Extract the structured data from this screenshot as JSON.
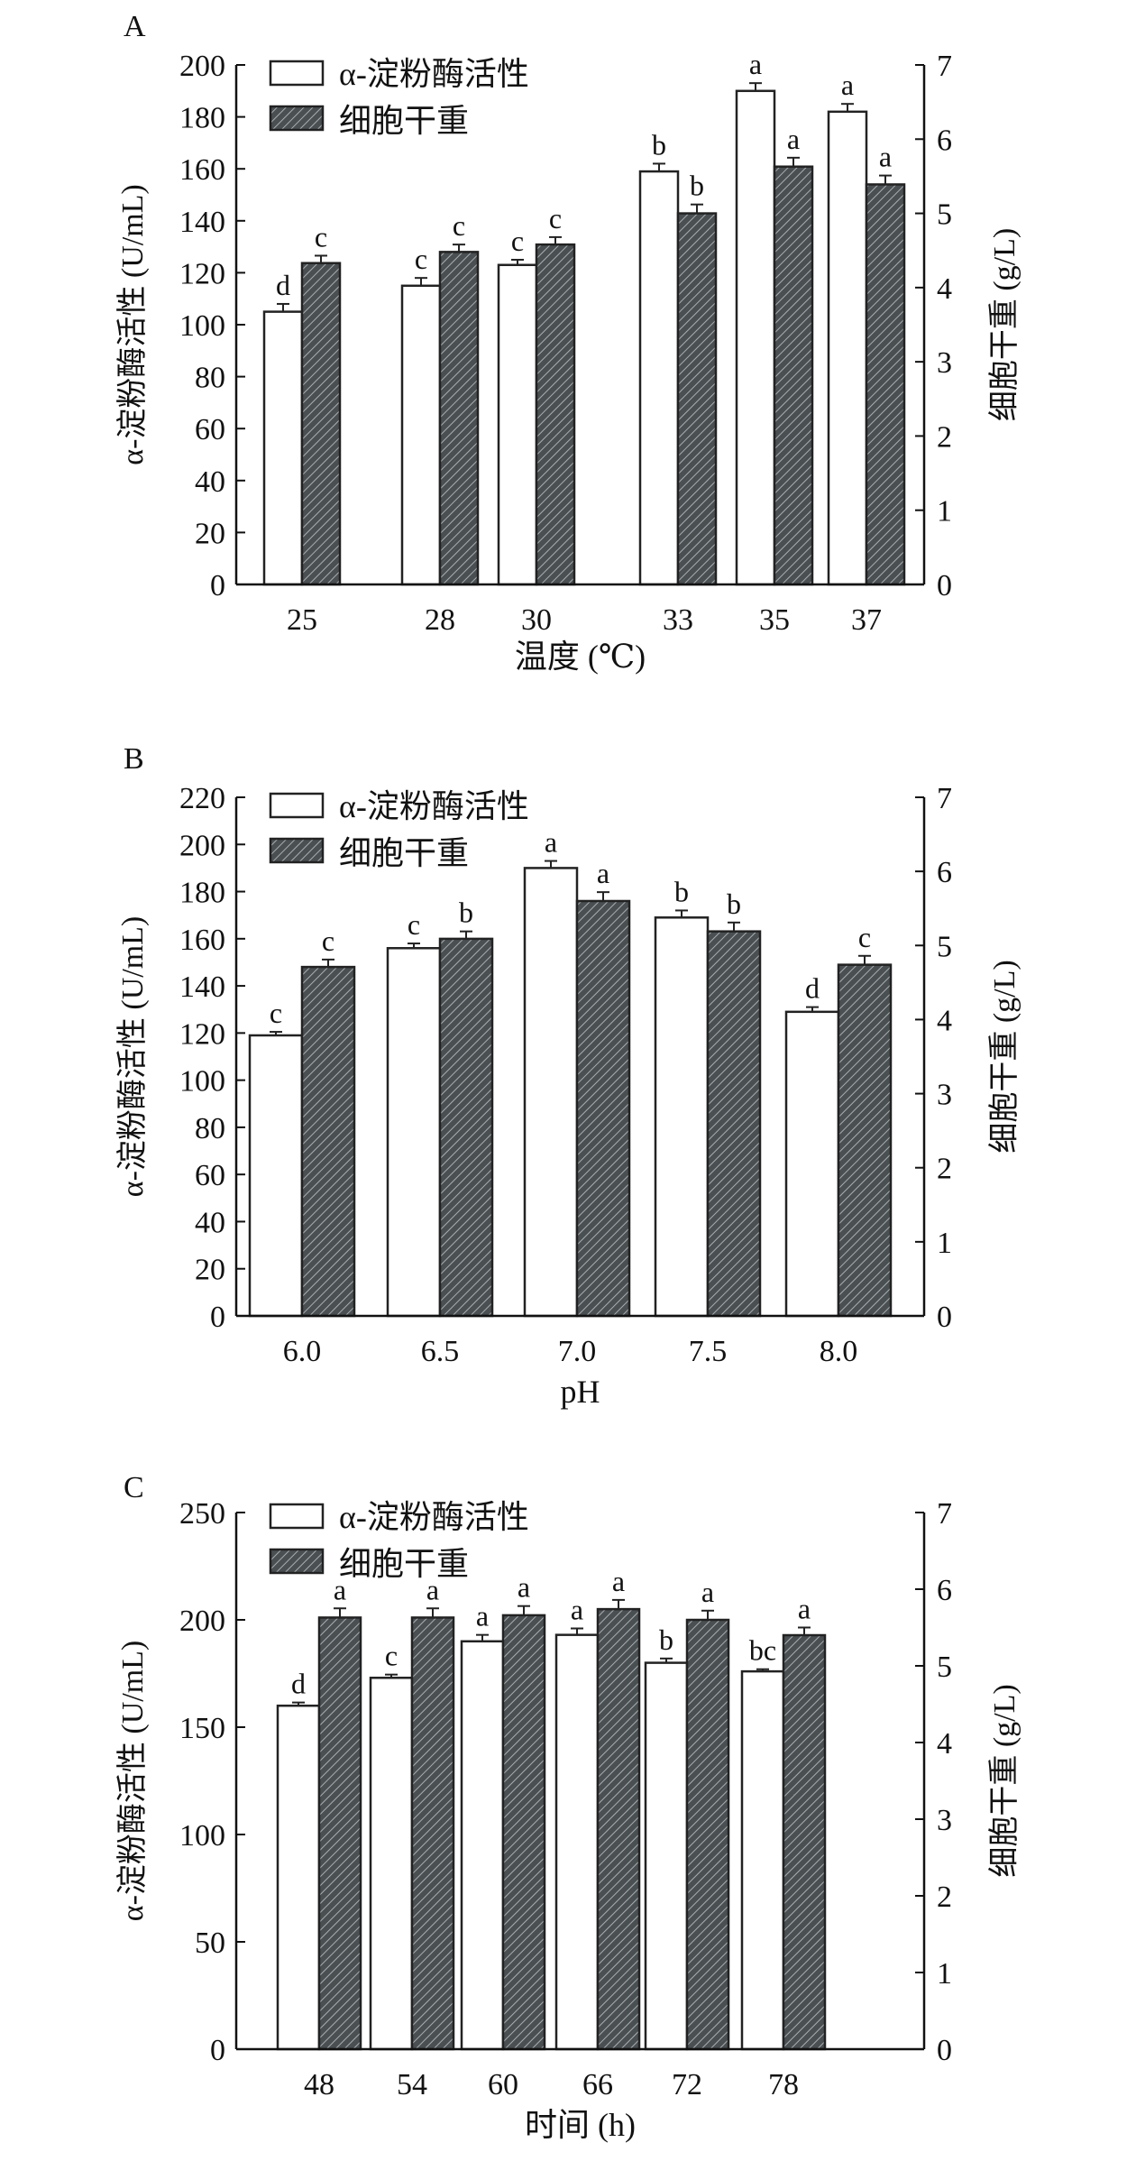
{
  "legend": {
    "enzyme": "α-淀粉酶活性",
    "dcw": "细胞干重"
  },
  "colors": {
    "enzyme_fill": "#ffffff",
    "dcw_fill": "#4a4f52",
    "axis": "#111111"
  },
  "chart_data": [
    {
      "panel_label": "A",
      "type": "bar",
      "xlabel": "温度 (℃)",
      "ylabel": "α-淀粉酶活性 (U/mL)",
      "y2label": "细胞干重 (g/L)",
      "categories": [
        "25",
        "28",
        "30",
        "33",
        "35",
        "37"
      ],
      "ylim": [
        0,
        200
      ],
      "yticks": [
        0,
        20,
        40,
        60,
        80,
        100,
        120,
        140,
        160,
        180,
        200
      ],
      "y2lim": [
        0,
        7
      ],
      "y2ticks": [
        0,
        1,
        2,
        3,
        4,
        5,
        6,
        7
      ],
      "series": [
        {
          "name": "α-淀粉酶活性",
          "axis": "left",
          "values": [
            105,
            115,
            123,
            159,
            190,
            182
          ],
          "errors": [
            3,
            3,
            2,
            3,
            3,
            3
          ],
          "letters": [
            "d",
            "c",
            "c",
            "b",
            "a",
            "a"
          ]
        },
        {
          "name": "细胞干重",
          "axis": "right",
          "values": [
            4.33,
            4.48,
            4.58,
            5.0,
            5.63,
            5.39
          ],
          "errors": [
            0.1,
            0.1,
            0.1,
            0.12,
            0.12,
            0.12
          ],
          "letters": [
            "c",
            "c",
            "c",
            "b",
            "a",
            "a"
          ]
        }
      ]
    },
    {
      "panel_label": "B",
      "type": "bar",
      "xlabel": "pH",
      "ylabel": "α-淀粉酶活性 (U/mL)",
      "y2label": "细胞干重 (g/L)",
      "categories": [
        "6.0",
        "6.5",
        "7.0",
        "7.5",
        "8.0"
      ],
      "ylim": [
        0,
        220
      ],
      "yticks": [
        0,
        20,
        40,
        60,
        80,
        100,
        120,
        140,
        160,
        180,
        200,
        220
      ],
      "y2lim": [
        0,
        7
      ],
      "y2ticks": [
        0,
        1,
        2,
        3,
        4,
        5,
        6,
        7
      ],
      "series": [
        {
          "name": "α-淀粉酶活性",
          "axis": "left",
          "values": [
            119,
            156,
            190,
            169,
            129
          ],
          "errors": [
            1.5,
            2,
            3,
            3,
            2
          ],
          "letters": [
            "c",
            "c",
            "a",
            "b",
            "d"
          ]
        },
        {
          "name": "细胞干重",
          "axis": "right",
          "values": [
            4.71,
            5.09,
            5.6,
            5.19,
            4.74
          ],
          "errors": [
            0.1,
            0.1,
            0.12,
            0.12,
            0.12
          ],
          "letters": [
            "c",
            "b",
            "a",
            "b",
            "c"
          ]
        }
      ]
    },
    {
      "panel_label": "C",
      "type": "bar",
      "xlabel": "时间 (h)",
      "ylabel": "α-淀粉酶活性 (U/mL)",
      "y2label": "细胞干重 (g/L)",
      "categories": [
        "48",
        "54",
        "60",
        "66",
        "72",
        "78"
      ],
      "ylim": [
        0,
        250
      ],
      "yticks": [
        0,
        50,
        100,
        150,
        200,
        250
      ],
      "y2lim": [
        0,
        7
      ],
      "y2ticks": [
        0,
        1,
        2,
        3,
        4,
        5,
        6,
        7
      ],
      "series": [
        {
          "name": "α-淀粉酶活性",
          "axis": "left",
          "values": [
            160,
            173,
            190,
            193,
            180,
            176
          ],
          "errors": [
            1.5,
            1.5,
            3,
            3,
            2,
            1
          ],
          "letters": [
            "d",
            "c",
            "a",
            "a",
            "b",
            "bc"
          ]
        },
        {
          "name": "细胞干重",
          "axis": "right",
          "values": [
            5.63,
            5.63,
            5.66,
            5.74,
            5.6,
            5.4
          ],
          "errors": [
            0.12,
            0.12,
            0.12,
            0.12,
            0.12,
            0.1
          ],
          "letters": [
            "a",
            "a",
            "a",
            "a",
            "a",
            "a"
          ]
        }
      ]
    }
  ]
}
